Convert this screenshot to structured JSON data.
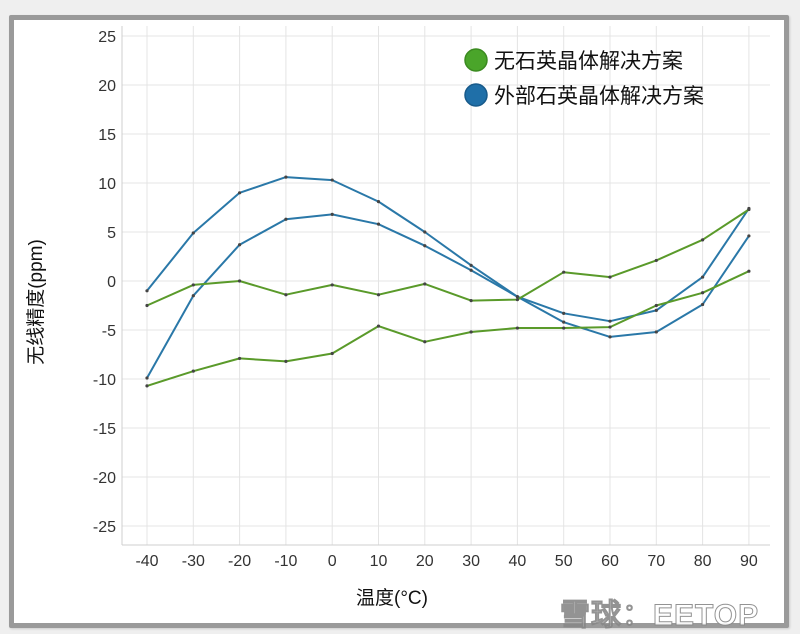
{
  "chart_data": {
    "type": "line",
    "title": "",
    "xlabel": "温度(°C)",
    "ylabel": "无线精度(ppm)",
    "x": [
      -40,
      -30,
      -20,
      -10,
      0,
      10,
      20,
      30,
      40,
      50,
      60,
      70,
      80,
      90
    ],
    "x_ticks": [
      "-40",
      "-30",
      "-20",
      "-10",
      "0",
      "10",
      "20",
      "30",
      "40",
      "50",
      "60",
      "70",
      "80",
      "90"
    ],
    "y_ticks": [
      "25",
      "20",
      "15",
      "10",
      "5",
      "0",
      "-5",
      "-10",
      "-15",
      "-20",
      "-25"
    ],
    "ylim": [
      -27,
      26
    ],
    "grid": true,
    "legend_position": "top-right",
    "legend": [
      {
        "label": "无石英晶体解决方案",
        "color": "#4aa52a"
      },
      {
        "label": "外部石英晶体解决方案",
        "color": "#1f6fa8"
      }
    ],
    "series": [
      {
        "name": "外部石英晶体解决方案 (upper bound)",
        "color": "#2a78a8",
        "values": [
          -1.0,
          4.9,
          9.0,
          10.6,
          10.3,
          8.1,
          5.0,
          1.6,
          -1.6,
          -3.3,
          -4.1,
          -3.0,
          0.4,
          7.4
        ]
      },
      {
        "name": "外部石英晶体解决方案 (lower bound)",
        "color": "#2a78a8",
        "values": [
          -9.9,
          -1.5,
          3.7,
          6.3,
          6.8,
          5.8,
          3.6,
          1.1,
          -1.6,
          -4.2,
          -5.7,
          -5.2,
          -2.4,
          4.6
        ]
      },
      {
        "name": "无石英晶体解决方案 (upper bound)",
        "color": "#5a9a2a",
        "values": [
          -2.5,
          -0.4,
          0.0,
          -1.4,
          -0.4,
          -1.4,
          -0.3,
          -2.0,
          -1.9,
          0.9,
          0.4,
          2.1,
          4.2,
          7.3
        ]
      },
      {
        "name": "无石英晶体解决方案 (lower bound)",
        "color": "#5a9a2a",
        "values": [
          -10.7,
          -9.2,
          -7.9,
          -8.2,
          -7.4,
          -4.6,
          -6.2,
          -5.2,
          -4.8,
          -4.8,
          -4.7,
          -2.5,
          -1.2,
          1.0
        ]
      }
    ]
  },
  "watermark": "雪球：EETOP"
}
